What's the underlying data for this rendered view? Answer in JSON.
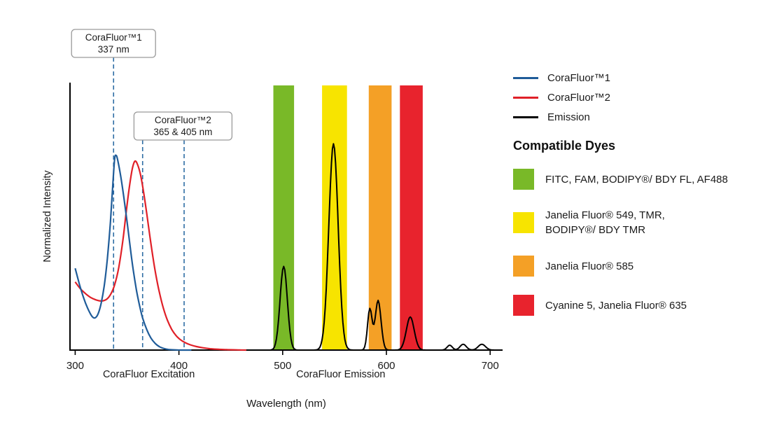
{
  "chart_data": {
    "type": "line",
    "title": "",
    "xlabel": "Wavelength (nm)",
    "ylabel": "Normalized Intensity",
    "x_ticks": [
      300,
      400,
      500,
      600,
      700
    ],
    "x_range": [
      295,
      712
    ],
    "y_range": [
      0,
      1.35
    ],
    "grid": false,
    "captions": {
      "excitation": "CoraFluor Excitation",
      "emission": "CoraFluor Emission"
    },
    "dashed_line_color": "#2e6da4",
    "excitation_series": [
      {
        "name": "CoraFluor™1",
        "color": "#1f5c99",
        "points": [
          [
            300,
            0.42
          ],
          [
            304,
            0.34
          ],
          [
            308,
            0.27
          ],
          [
            312,
            0.215
          ],
          [
            316,
            0.175
          ],
          [
            319,
            0.165
          ],
          [
            322,
            0.185
          ],
          [
            325,
            0.24
          ],
          [
            328,
            0.33
          ],
          [
            331,
            0.47
          ],
          [
            334,
            0.66
          ],
          [
            336,
            0.83
          ],
          [
            338,
            0.98
          ],
          [
            339.5,
            1.0
          ],
          [
            341,
            0.975
          ],
          [
            344,
            0.89
          ],
          [
            347,
            0.78
          ],
          [
            350,
            0.66
          ],
          [
            353,
            0.53
          ],
          [
            356,
            0.41
          ],
          [
            359,
            0.31
          ],
          [
            362,
            0.23
          ],
          [
            365,
            0.165
          ],
          [
            369,
            0.105
          ],
          [
            373,
            0.062
          ],
          [
            377,
            0.035
          ],
          [
            381,
            0.018
          ],
          [
            385,
            0.009
          ],
          [
            390,
            0.003
          ],
          [
            396,
            0.001
          ],
          [
            402,
            0
          ],
          [
            412,
            0
          ]
        ]
      },
      {
        "name": "CoraFluor™2",
        "color": "#e02028",
        "points": [
          [
            300,
            0.35
          ],
          [
            305,
            0.315
          ],
          [
            310,
            0.29
          ],
          [
            315,
            0.27
          ],
          [
            320,
            0.258
          ],
          [
            325,
            0.252
          ],
          [
            330,
            0.26
          ],
          [
            334,
            0.285
          ],
          [
            338,
            0.335
          ],
          [
            342,
            0.425
          ],
          [
            346,
            0.565
          ],
          [
            349,
            0.7
          ],
          [
            352,
            0.83
          ],
          [
            355,
            0.93
          ],
          [
            357.5,
            0.97
          ],
          [
            360,
            0.955
          ],
          [
            363,
            0.9
          ],
          [
            366,
            0.81
          ],
          [
            369,
            0.7
          ],
          [
            372,
            0.585
          ],
          [
            375,
            0.475
          ],
          [
            378,
            0.38
          ],
          [
            381,
            0.3
          ],
          [
            385,
            0.215
          ],
          [
            389,
            0.152
          ],
          [
            393,
            0.107
          ],
          [
            397,
            0.076
          ],
          [
            401,
            0.055
          ],
          [
            406,
            0.038
          ],
          [
            411,
            0.027
          ],
          [
            417,
            0.018
          ],
          [
            423,
            0.012
          ],
          [
            430,
            0.007
          ],
          [
            438,
            0.004
          ],
          [
            446,
            0.002
          ],
          [
            455,
            0.001
          ],
          [
            465,
            0
          ]
        ]
      }
    ],
    "emission_series": {
      "name": "Emission",
      "color": "#000000",
      "range": [
        484,
        710
      ],
      "peaks": [
        {
          "center": 501,
          "height": 0.43,
          "sigma": 3.5
        },
        {
          "center": 549,
          "height": 1.06,
          "sigma": 4.5
        },
        {
          "center": 584,
          "height": 0.21,
          "sigma": 2.2
        },
        {
          "center": 592,
          "height": 0.255,
          "sigma": 2.8
        },
        {
          "center": 623,
          "height": 0.17,
          "sigma": 3.8
        },
        {
          "center": 661,
          "height": 0.025,
          "sigma": 2.5
        },
        {
          "center": 674,
          "height": 0.03,
          "sigma": 3
        },
        {
          "center": 692,
          "height": 0.03,
          "sigma": 3.5
        }
      ]
    },
    "detection_bands": [
      {
        "color": "#79b928",
        "from": 491,
        "to": 511
      },
      {
        "color": "#f7e400",
        "from": 538,
        "to": 562
      },
      {
        "color": "#f4a026",
        "from": 583,
        "to": 605
      },
      {
        "color": "#e8232d",
        "from": 613,
        "to": 635
      }
    ],
    "annotations": [
      {
        "lines": [
          "CoraFluor™1",
          "337 nm"
        ],
        "wavelengths_nm": [
          337
        ]
      },
      {
        "lines": [
          "CoraFluor™2",
          "365 & 405 nm"
        ],
        "wavelengths_nm": [
          365,
          405
        ]
      }
    ]
  },
  "legend": {
    "items": [
      {
        "label": "CoraFluor™1",
        "color": "#1f5c99"
      },
      {
        "label": "CoraFluor™2",
        "color": "#e02028"
      },
      {
        "label": "Emission",
        "color": "#000000"
      }
    ]
  },
  "compatible_dyes": {
    "title": "Compatible Dyes",
    "items": [
      {
        "color": "#79b928",
        "lines": [
          "FITC, FAM, BODIPY®/ BDY FL, AF488"
        ]
      },
      {
        "color": "#f7e400",
        "lines": [
          "Janelia Fluor® 549, TMR,",
          "BODIPY®/ BDY TMR"
        ]
      },
      {
        "color": "#f4a026",
        "lines": [
          "Janelia Fluor® 585"
        ]
      },
      {
        "color": "#e8232d",
        "lines": [
          "Cyanine 5, Janelia Fluor® 635"
        ]
      }
    ]
  }
}
